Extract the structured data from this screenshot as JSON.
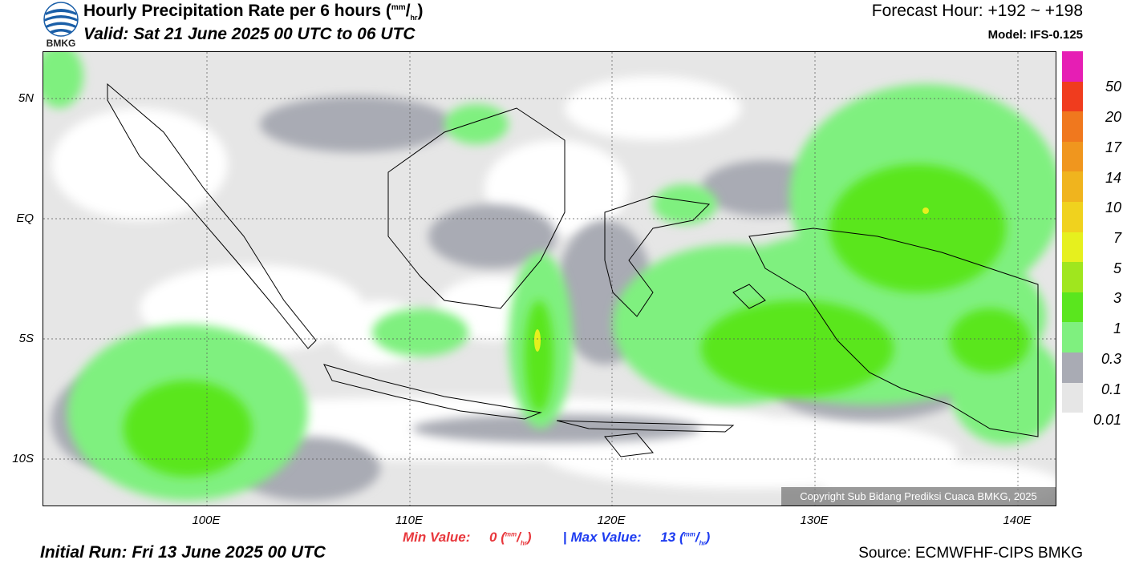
{
  "header": {
    "title": "Hourly Precipitation Rate per 6 hours (",
    "title_unit_top": "mm",
    "title_unit_sep": "/",
    "title_unit_bottom": "hr",
    "title_close": ")",
    "valid": "Valid: Sat 21 June 2025 00 UTC to 06 UTC",
    "forecast_hour": "Forecast Hour: +192 ~ +198",
    "model": "Model: IFS-0.125",
    "logo_text": "BMKG"
  },
  "axes": {
    "y_labels": [
      "5N",
      "EQ",
      "5S",
      "10S"
    ],
    "x_labels": [
      "100E",
      "110E",
      "120E",
      "130E",
      "140E"
    ]
  },
  "legend": {
    "levels": [
      "0.01",
      "0.1",
      "0.3",
      "1",
      "3",
      "5",
      "7",
      "10",
      "14",
      "17",
      "20",
      "50"
    ],
    "colors": [
      "#e6e6e6",
      "#a9abb4",
      "#7ff07f",
      "#5ae61e",
      "#a0e61e",
      "#e6f01e",
      "#f0d21e",
      "#f0b41e",
      "#f0961e",
      "#f0781e",
      "#f03c1e",
      "#e61eb4",
      "#e61eb4"
    ]
  },
  "stats": {
    "min_label": "Min Value:",
    "min_value": "0",
    "max_label": "Max Value:",
    "max_value": "13",
    "unit_top": "mm",
    "unit_bottom": "hr",
    "separator": "|"
  },
  "footer": {
    "initial_run": "Initial Run: Fri 13 June 2025 00 UTC",
    "source": "Source: ECMWFHF-CIPS BMKG",
    "copyright": "Copyright Sub Bidang Prediksi Cuaca BMKG, 2025"
  },
  "map_colors": {
    "background": "#ffffff",
    "light_gray": "#e6e6e6",
    "gray": "#a9abb4",
    "light_green": "#7ff07f",
    "green": "#5ae61e",
    "yellow": "#e6f01e"
  }
}
